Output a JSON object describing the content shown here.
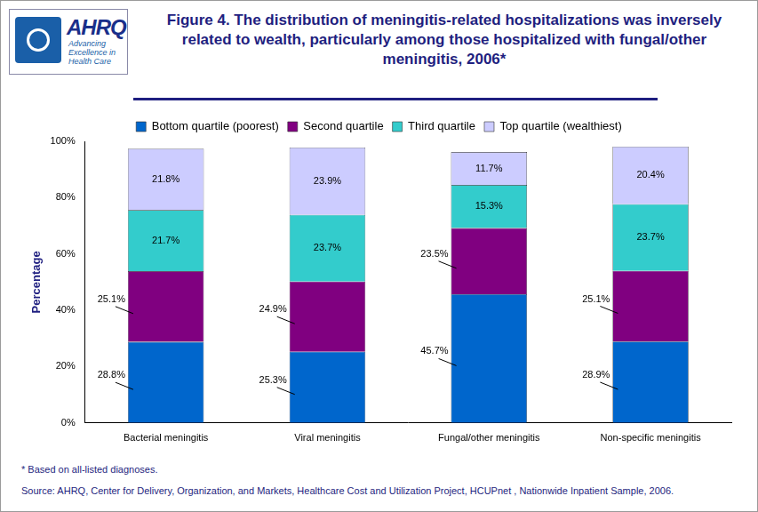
{
  "header": {
    "logo_name": "AHRQ",
    "logo_tagline": "Advancing Excellence in Health Care"
  },
  "chart_data": {
    "type": "bar",
    "title": "Figure 4. The distribution of meningitis-related hospitalizations was inversely related to wealth, particularly among those hospitalized with fungal/other meningitis, 2006*",
    "y_label": "Percentage",
    "categories": [
      "Bacterial meningitis",
      "Viral meningitis",
      "Fungal/other meningitis",
      "Non-specific meningitis"
    ],
    "series": [
      {
        "name": "Bottom quartile (poorest)",
        "color": "#0066cc",
        "values": [
          28.8,
          25.3,
          45.7,
          28.9
        ],
        "value_labels": [
          "28.8%",
          "25.3%",
          "45.7%",
          "28.9%"
        ]
      },
      {
        "name": "Second quartile",
        "color": "#800080",
        "values": [
          25.1,
          24.9,
          23.5,
          25.1
        ],
        "value_labels": [
          "25.1%",
          "24.9%",
          "23.5%",
          "25.1%"
        ]
      },
      {
        "name": "Third quartile",
        "color": "#33cccc",
        "values": [
          21.7,
          23.7,
          15.3,
          23.7
        ],
        "value_labels": [
          "21.7%",
          "23.7%",
          "15.3%",
          "23.7%"
        ]
      },
      {
        "name": "Top quartile (wealthiest)",
        "color": "#ccccff",
        "values": [
          21.8,
          23.9,
          11.7,
          20.4
        ],
        "value_labels": [
          "21.8%",
          "23.9%",
          "11.7%",
          "20.4%"
        ]
      }
    ],
    "stacked": true,
    "data_labels": true,
    "legend": "top",
    "grid": false,
    "ylim": [
      0,
      100
    ],
    "yticks": [
      {
        "value": 0,
        "label": "0%"
      },
      {
        "value": 20,
        "label": "20%"
      },
      {
        "value": 40,
        "label": "40%"
      },
      {
        "value": 60,
        "label": "60%"
      },
      {
        "value": 80,
        "label": "80%"
      },
      {
        "value": 100,
        "label": "100%"
      }
    ]
  },
  "footnote": "* Based on all-listed diagnoses.",
  "source": "Source: AHRQ, Center for Delivery, Organization, and Markets, Healthcare Cost and Utilization Project, HCUPnet , Nationwide Inpatient Sample, 2006."
}
